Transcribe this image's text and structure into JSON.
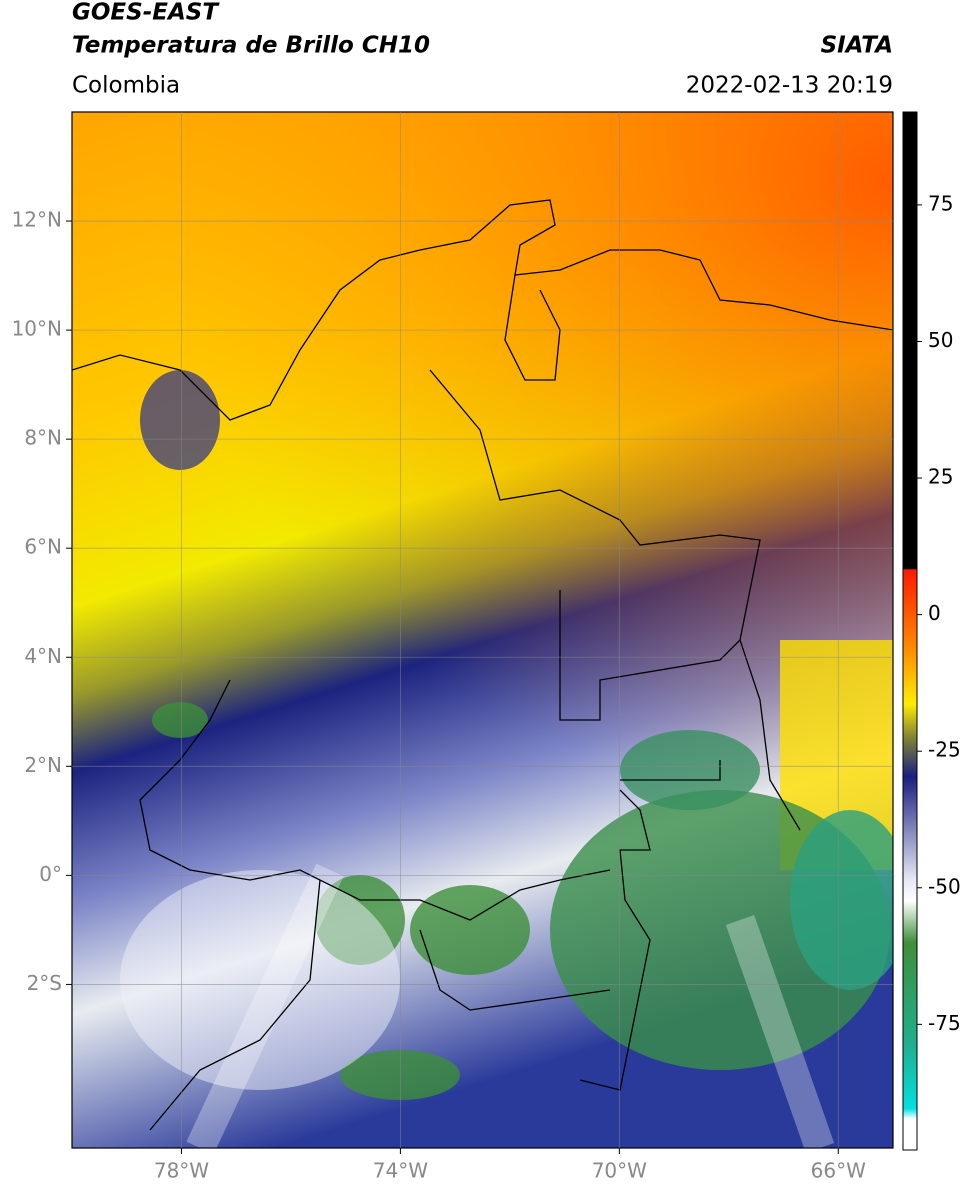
{
  "chart_data": {
    "type": "map",
    "title": "GOES-EAST",
    "subtitle": "Temperatura de Brillo CH10",
    "region": "Colombia",
    "source": "SIATA",
    "timestamp": "2022-02-13 20:19",
    "xlim": [
      -80,
      -65
    ],
    "ylim": [
      -5,
      14
    ],
    "xticks": [
      {
        "value": -78,
        "label": "78°W"
      },
      {
        "value": -74,
        "label": "74°W"
      },
      {
        "value": -70,
        "label": "70°W"
      },
      {
        "value": -66,
        "label": "66°W"
      }
    ],
    "yticks": [
      {
        "value": -2,
        "label": "2°S"
      },
      {
        "value": 0,
        "label": "0°"
      },
      {
        "value": 2,
        "label": "2°N"
      },
      {
        "value": 4,
        "label": "4°N"
      },
      {
        "value": 6,
        "label": "6°N"
      },
      {
        "value": 8,
        "label": "8°N"
      },
      {
        "value": 10,
        "label": "10°N"
      },
      {
        "value": 12,
        "label": "12°N"
      }
    ],
    "grid": true,
    "colorbar_lim": [
      -98,
      92
    ],
    "colorbar_ticks": [
      -75,
      -50,
      -25,
      0,
      25,
      50,
      75
    ]
  }
}
